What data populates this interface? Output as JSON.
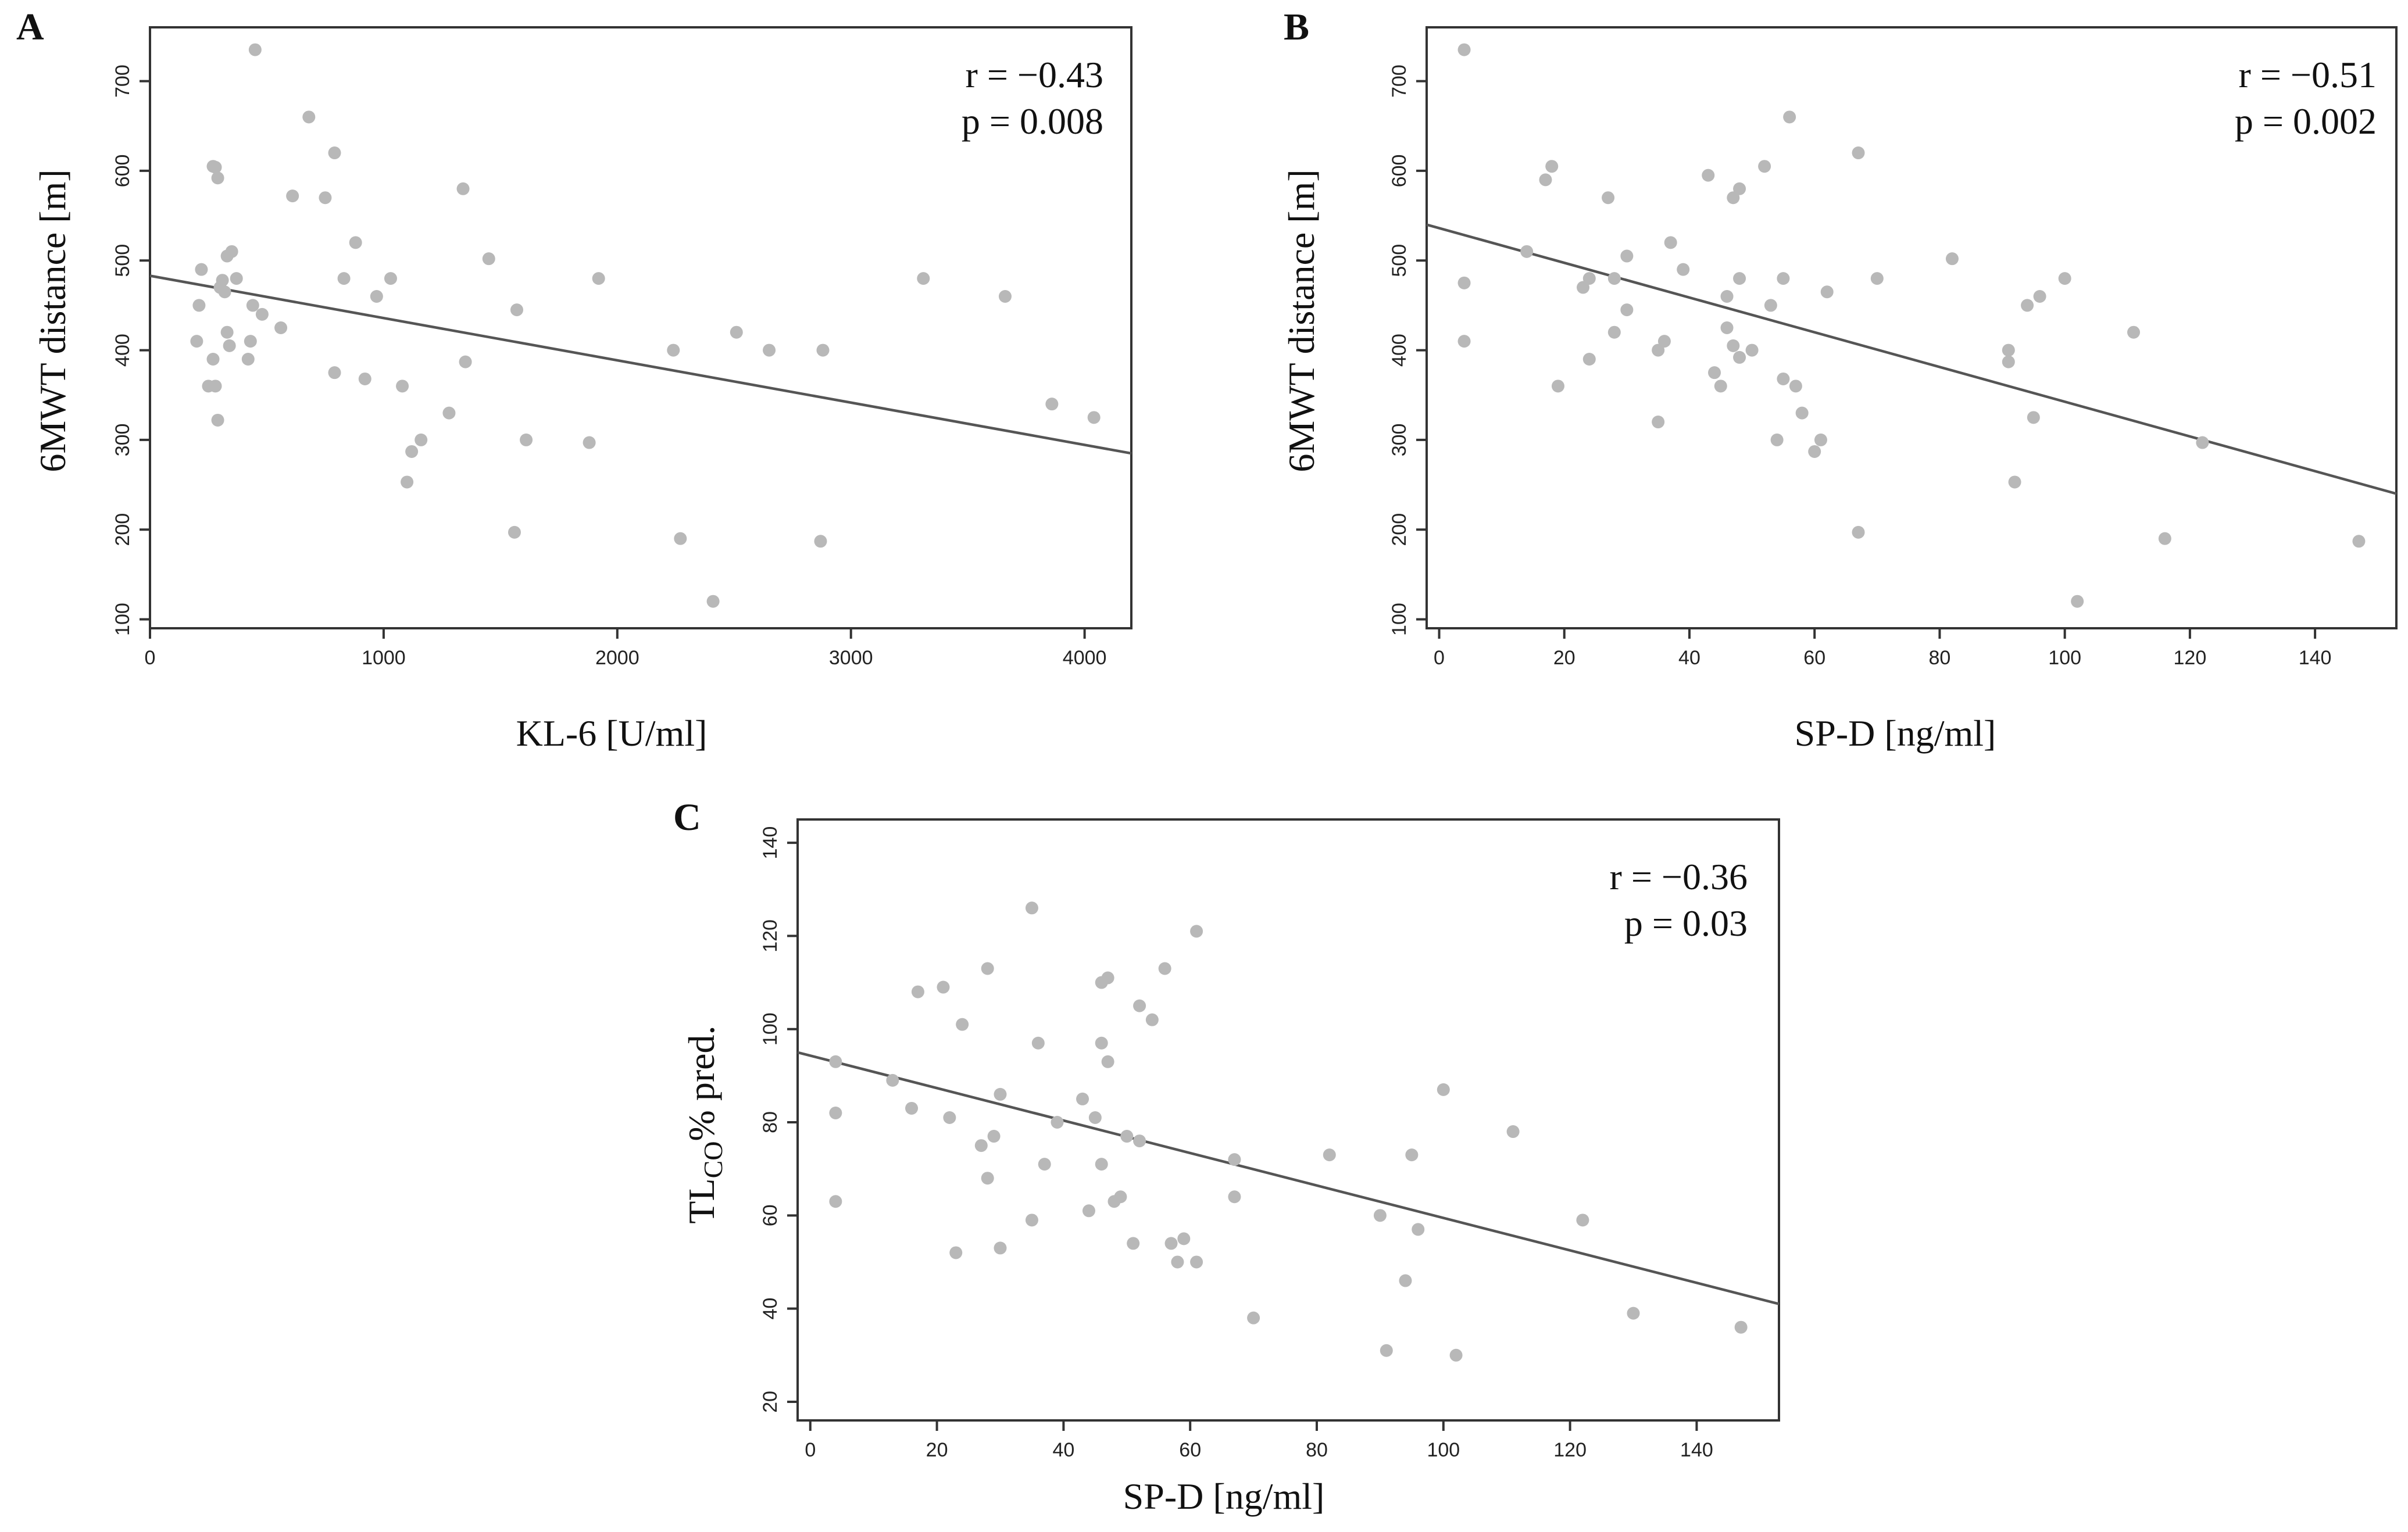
{
  "chart_data": [
    {
      "panel": "A",
      "type": "scatter",
      "xlabel": "KL-6 [U/ml]",
      "ylabel": "6MWT distance [m]",
      "xlim": [
        0,
        4200
      ],
      "ylim": [
        90,
        760
      ],
      "xticks": [
        0,
        1000,
        2000,
        3000,
        4000
      ],
      "yticks": [
        100,
        200,
        300,
        400,
        500,
        600,
        700
      ],
      "stat_r": "r = −0.43",
      "stat_p": "p = 0.008",
      "fit_line": {
        "x": [
          0,
          4200
        ],
        "y": [
          483,
          285
        ]
      },
      "points": [
        [
          220,
          490
        ],
        [
          210,
          450
        ],
        [
          200,
          410
        ],
        [
          250,
          360
        ],
        [
          270,
          390
        ],
        [
          280,
          360
        ],
        [
          290,
          322
        ],
        [
          270,
          605
        ],
        [
          280,
          604
        ],
        [
          290,
          592
        ],
        [
          300,
          470
        ],
        [
          310,
          478
        ],
        [
          320,
          465
        ],
        [
          330,
          505
        ],
        [
          340,
          405
        ],
        [
          330,
          420
        ],
        [
          350,
          510
        ],
        [
          370,
          480
        ],
        [
          420,
          390
        ],
        [
          430,
          410
        ],
        [
          440,
          450
        ],
        [
          450,
          735
        ],
        [
          480,
          440
        ],
        [
          560,
          425
        ],
        [
          610,
          572
        ],
        [
          680,
          660
        ],
        [
          750,
          570
        ],
        [
          790,
          620
        ],
        [
          790,
          375
        ],
        [
          830,
          480
        ],
        [
          880,
          520
        ],
        [
          920,
          368
        ],
        [
          970,
          460
        ],
        [
          1030,
          480
        ],
        [
          1080,
          360
        ],
        [
          1100,
          253
        ],
        [
          1120,
          287
        ],
        [
          1160,
          300
        ],
        [
          1280,
          330
        ],
        [
          1340,
          580
        ],
        [
          1350,
          387
        ],
        [
          1450,
          502
        ],
        [
          1570,
          445
        ],
        [
          1560,
          197
        ],
        [
          1610,
          300
        ],
        [
          1880,
          297
        ],
        [
          1920,
          480
        ],
        [
          2240,
          400
        ],
        [
          2270,
          190
        ],
        [
          2410,
          120
        ],
        [
          2510,
          420
        ],
        [
          2650,
          400
        ],
        [
          2870,
          187
        ],
        [
          2880,
          400
        ],
        [
          3310,
          480
        ],
        [
          3660,
          460
        ],
        [
          3860,
          340
        ],
        [
          4040,
          325
        ]
      ]
    },
    {
      "panel": "B",
      "type": "scatter",
      "xlabel": "SP-D [ng/ml]",
      "ylabel": "6MWT distance [m]",
      "xlim": [
        -2,
        153
      ],
      "ylim": [
        90,
        760
      ],
      "xticks": [
        0,
        20,
        40,
        60,
        80,
        100,
        120,
        140
      ],
      "yticks": [
        100,
        200,
        300,
        400,
        500,
        600,
        700
      ],
      "stat_r": "r = −0.51",
      "stat_p": "p = 0.002",
      "fit_line": {
        "x": [
          -2,
          153
        ],
        "y": [
          540,
          240
        ]
      },
      "points": [
        [
          4,
          735
        ],
        [
          4,
          475
        ],
        [
          4,
          410
        ],
        [
          14,
          510
        ],
        [
          17,
          590
        ],
        [
          18,
          605
        ],
        [
          19,
          360
        ],
        [
          23,
          470
        ],
        [
          24,
          480
        ],
        [
          24,
          390
        ],
        [
          27,
          570
        ],
        [
          28,
          480
        ],
        [
          28,
          420
        ],
        [
          30,
          445
        ],
        [
          30,
          505
        ],
        [
          35,
          320
        ],
        [
          35,
          400
        ],
        [
          36,
          410
        ],
        [
          37,
          520
        ],
        [
          39,
          490
        ],
        [
          43,
          595
        ],
        [
          44,
          375
        ],
        [
          45,
          360
        ],
        [
          46,
          460
        ],
        [
          46,
          425
        ],
        [
          47,
          405
        ],
        [
          47,
          570
        ],
        [
          48,
          580
        ],
        [
          48,
          480
        ],
        [
          48,
          392
        ],
        [
          50,
          400
        ],
        [
          52,
          605
        ],
        [
          53,
          450
        ],
        [
          54,
          300
        ],
        [
          55,
          480
        ],
        [
          55,
          368
        ],
        [
          56,
          660
        ],
        [
          57,
          360
        ],
        [
          58,
          330
        ],
        [
          60,
          287
        ],
        [
          61,
          300
        ],
        [
          62,
          465
        ],
        [
          67,
          620
        ],
        [
          67,
          197
        ],
        [
          70,
          480
        ],
        [
          82,
          502
        ],
        [
          91,
          400
        ],
        [
          91,
          387
        ],
        [
          92,
          253
        ],
        [
          94,
          450
        ],
        [
          95,
          325
        ],
        [
          96,
          460
        ],
        [
          100,
          480
        ],
        [
          102,
          120
        ],
        [
          111,
          420
        ],
        [
          116,
          190
        ],
        [
          122,
          297
        ],
        [
          147,
          187
        ]
      ]
    },
    {
      "panel": "C",
      "type": "scatter",
      "xlabel": "SP-D [ng/ml]",
      "ylabel_main": "TL",
      "ylabel_sub": "CO",
      "ylabel_rest": "% pred.",
      "xlim": [
        -2,
        153
      ],
      "ylim": [
        16,
        145
      ],
      "xticks": [
        0,
        20,
        40,
        60,
        80,
        100,
        120,
        140
      ],
      "yticks": [
        20,
        40,
        60,
        80,
        100,
        120,
        140
      ],
      "stat_r": "r = −0.36",
      "stat_p": "p = 0.03",
      "fit_line": {
        "x": [
          -2,
          153
        ],
        "y": [
          95,
          41
        ]
      },
      "points": [
        [
          4,
          93
        ],
        [
          4,
          82
        ],
        [
          4,
          63
        ],
        [
          13,
          89
        ],
        [
          16,
          83
        ],
        [
          17,
          108
        ],
        [
          21,
          109
        ],
        [
          22,
          81
        ],
        [
          23,
          52
        ],
        [
          24,
          101
        ],
        [
          27,
          75
        ],
        [
          28,
          68
        ],
        [
          28,
          113
        ],
        [
          29,
          77
        ],
        [
          30,
          86
        ],
        [
          30,
          53
        ],
        [
          35,
          59
        ],
        [
          35,
          126
        ],
        [
          36,
          97
        ],
        [
          37,
          71
        ],
        [
          39,
          80
        ],
        [
          43,
          85
        ],
        [
          44,
          61
        ],
        [
          45,
          81
        ],
        [
          46,
          71
        ],
        [
          46,
          97
        ],
        [
          46,
          110
        ],
        [
          47,
          111
        ],
        [
          47,
          93
        ],
        [
          48,
          63
        ],
        [
          49,
          64
        ],
        [
          50,
          77
        ],
        [
          51,
          54
        ],
        [
          52,
          76
        ],
        [
          52,
          105
        ],
        [
          54,
          102
        ],
        [
          56,
          113
        ],
        [
          57,
          54
        ],
        [
          58,
          50
        ],
        [
          59,
          55
        ],
        [
          61,
          121
        ],
        [
          61,
          50
        ],
        [
          67,
          72
        ],
        [
          67,
          64
        ],
        [
          70,
          38
        ],
        [
          82,
          73
        ],
        [
          90,
          60
        ],
        [
          91,
          31
        ],
        [
          94,
          46
        ],
        [
          95,
          73
        ],
        [
          96,
          57
        ],
        [
          100,
          87
        ],
        [
          102,
          30
        ],
        [
          111,
          78
        ],
        [
          122,
          59
        ],
        [
          130,
          39
        ],
        [
          147,
          36
        ]
      ]
    }
  ]
}
